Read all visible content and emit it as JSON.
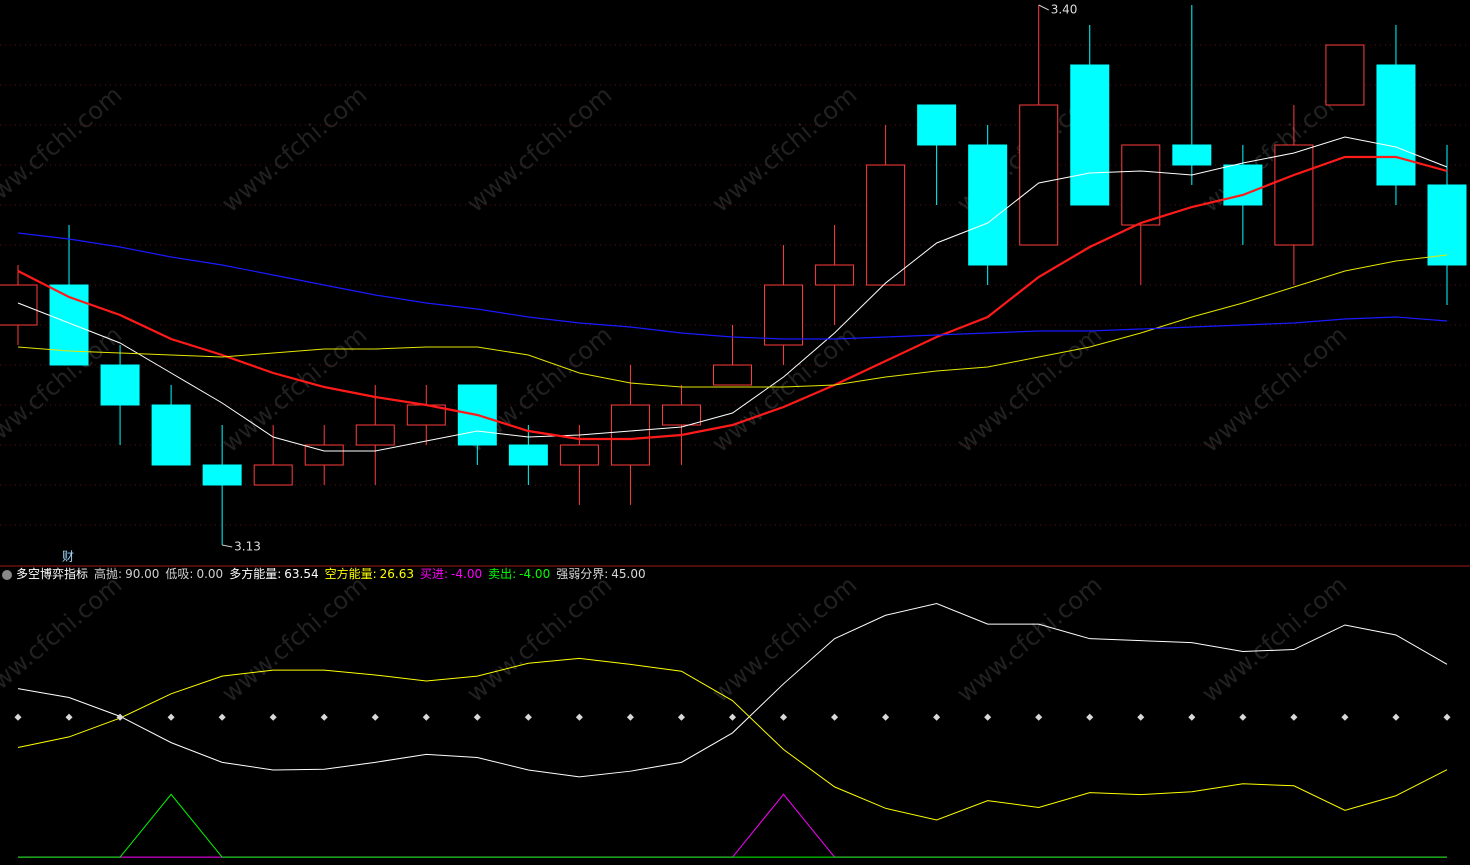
{
  "chart_data": [
    {
      "type": "candlestick",
      "categories": [
        null,
        null,
        null,
        null,
        null,
        null,
        null,
        null,
        null,
        null,
        null,
        null,
        null,
        null,
        null,
        null,
        null,
        null,
        null,
        null,
        null,
        null,
        null,
        null,
        null,
        null,
        null,
        null,
        null
      ],
      "open": [
        3.24,
        3.26,
        3.22,
        3.2,
        3.17,
        3.16,
        3.17,
        3.18,
        3.19,
        3.21,
        3.18,
        3.17,
        3.17,
        3.19,
        3.21,
        3.23,
        3.26,
        3.26,
        3.35,
        3.33,
        3.28,
        3.37,
        3.29,
        3.33,
        3.32,
        3.28,
        3.35,
        3.37,
        3.31
      ],
      "high": [
        3.27,
        3.29,
        3.23,
        3.21,
        3.19,
        3.19,
        3.19,
        3.21,
        3.21,
        3.21,
        3.19,
        3.19,
        3.22,
        3.21,
        3.24,
        3.28,
        3.29,
        3.34,
        3.35,
        3.34,
        3.4,
        3.39,
        3.33,
        3.4,
        3.33,
        3.35,
        3.38,
        3.39,
        3.33
      ],
      "low": [
        3.23,
        3.22,
        3.18,
        3.17,
        3.13,
        3.16,
        3.16,
        3.16,
        3.18,
        3.17,
        3.16,
        3.15,
        3.15,
        3.17,
        3.21,
        3.22,
        3.24,
        3.26,
        3.3,
        3.26,
        3.28,
        3.3,
        3.26,
        3.31,
        3.28,
        3.26,
        3.35,
        3.3,
        3.25
      ],
      "close": [
        3.26,
        3.22,
        3.2,
        3.17,
        3.16,
        3.17,
        3.18,
        3.19,
        3.2,
        3.18,
        3.17,
        3.18,
        3.2,
        3.2,
        3.22,
        3.26,
        3.27,
        3.32,
        3.33,
        3.27,
        3.35,
        3.3,
        3.33,
        3.32,
        3.3,
        3.33,
        3.38,
        3.31,
        3.27
      ],
      "up_color": "#ff3c3c",
      "down_color": "#00ffff",
      "series": [
        {
          "color": "#ffffff",
          "width": 1,
          "values": [
            3.251,
            3.241,
            3.231,
            3.216,
            3.201,
            3.184,
            3.177,
            3.177,
            3.182,
            3.187,
            3.184,
            3.185,
            3.187,
            3.189,
            3.196,
            3.214,
            3.236,
            3.261,
            3.281,
            3.291,
            3.311,
            3.316,
            3.317,
            3.315,
            3.321,
            3.326,
            3.334,
            3.329,
            3.319
          ]
        },
        {
          "color": "#ff1a1a",
          "width": 2.2,
          "values": [
            3.267,
            3.254,
            3.245,
            3.233,
            3.225,
            3.216,
            3.209,
            3.204,
            3.2,
            3.195,
            3.187,
            3.183,
            3.183,
            3.185,
            3.19,
            3.199,
            3.21,
            3.222,
            3.234,
            3.244,
            3.264,
            3.279,
            3.291,
            3.299,
            3.305,
            3.315,
            3.324,
            3.324,
            3.317
          ]
        },
        {
          "color": "#e6e600",
          "width": 1,
          "values": [
            3.229,
            3.227,
            3.226,
            3.225,
            3.224,
            3.226,
            3.228,
            3.228,
            3.229,
            3.229,
            3.225,
            3.216,
            3.211,
            3.209,
            3.209,
            3.209,
            3.21,
            3.214,
            3.217,
            3.219,
            3.224,
            3.229,
            3.236,
            3.244,
            3.251,
            3.259,
            3.267,
            3.272,
            3.275
          ]
        },
        {
          "color": "#1a1aff",
          "width": 1.2,
          "values": [
            3.286,
            3.283,
            3.279,
            3.274,
            3.27,
            3.265,
            3.26,
            3.255,
            3.251,
            3.248,
            3.244,
            3.241,
            3.239,
            3.236,
            3.234,
            3.233,
            3.233,
            3.234,
            3.235,
            3.236,
            3.237,
            3.237,
            3.238,
            3.239,
            3.24,
            3.241,
            3.243,
            3.244,
            3.242
          ]
        }
      ],
      "ylim": [
        3.12,
        3.4025
      ],
      "yticks": [
        3.14,
        3.16,
        3.18,
        3.2,
        3.22,
        3.24,
        3.26,
        3.28,
        3.3,
        3.32,
        3.34,
        3.36,
        3.38
      ],
      "grid": true,
      "annotations": [
        {
          "label": "3.40",
          "value": 3.4
        },
        {
          "label": "3.13",
          "value": 3.13
        }
      ],
      "marker_text": "财",
      "watermark": "www.cfchi.com"
    },
    {
      "type": "line",
      "title": "多空博弈指标",
      "categories": [
        null,
        null,
        null,
        null,
        null,
        null,
        null,
        null,
        null,
        null,
        null,
        null,
        null,
        null,
        null,
        null,
        null,
        null,
        null,
        null,
        null,
        null,
        null,
        null,
        null,
        null,
        null,
        null,
        null
      ],
      "levels": [
        {
          "name": "高抛:",
          "value": 90,
          "label": "90.00",
          "color": "#d0d0d0"
        },
        {
          "name": "低吸:",
          "value": 0,
          "label": "0.00",
          "color": "#d0d0d0"
        }
      ],
      "series": [
        {
          "name": "多方能量:",
          "color": "#ffffff",
          "readout": "63.54",
          "style": "line",
          "values": [
            55.0,
            51.9,
            45.3,
            36.1,
            29.2,
            26.5,
            26.8,
            29.2,
            32.0,
            30.9,
            26.5,
            24.1,
            26.1,
            29.2,
            39.5,
            56.7,
            72.5,
            80.7,
            84.8,
            77.6,
            77.6,
            72.5,
            71.8,
            71.1,
            68.0,
            68.7,
            77.3,
            73.8,
            63.54
          ]
        },
        {
          "name": "空方能量:",
          "color": "#ffff00",
          "readout": "26.63",
          "style": "line",
          "values": [
            34.4,
            38.1,
            44.7,
            53.2,
            59.4,
            61.5,
            61.5,
            59.8,
            57.7,
            59.4,
            63.9,
            65.6,
            63.5,
            61.1,
            50.8,
            33.7,
            20.6,
            13.1,
            9.0,
            15.8,
            13.4,
            18.6,
            17.9,
            18.9,
            21.7,
            21.0,
            12.4,
            17.5,
            26.63
          ]
        },
        {
          "name": "买进:",
          "color": "#ff00ff",
          "readout": "-4.00",
          "style": "line",
          "values": [
            -4,
            -4,
            -4,
            -4,
            -4,
            -4,
            -4,
            -4,
            -4,
            -4,
            -4,
            -4,
            -4,
            -4,
            -4,
            18,
            -4,
            -4,
            -4,
            -4,
            -4,
            -4,
            -4,
            -4,
            -4,
            -4,
            -4,
            -4,
            -4
          ]
        },
        {
          "name": "卖出:",
          "color": "#00ff00",
          "readout": "-4.00",
          "style": "line",
          "values": [
            -4,
            -4,
            -4,
            18,
            -4,
            -4,
            -4,
            -4,
            -4,
            -4,
            -4,
            -4,
            -4,
            -4,
            -4,
            -4,
            -4,
            -4,
            -4,
            -4,
            -4,
            -4,
            -4,
            -4,
            -4,
            -4,
            -4,
            -4,
            -4
          ]
        },
        {
          "name": "强弱分界:",
          "color": "#d8d8d8",
          "readout": "45.00",
          "style": "dots",
          "values": [
            45,
            45,
            45,
            45,
            45,
            45,
            45,
            45,
            45,
            45,
            45,
            45,
            45,
            45,
            45,
            45,
            45,
            45,
            45,
            45,
            45,
            45,
            45,
            45,
            45,
            45,
            45,
            45,
            45
          ]
        }
      ],
      "ylim": [
        -5,
        92
      ]
    }
  ]
}
